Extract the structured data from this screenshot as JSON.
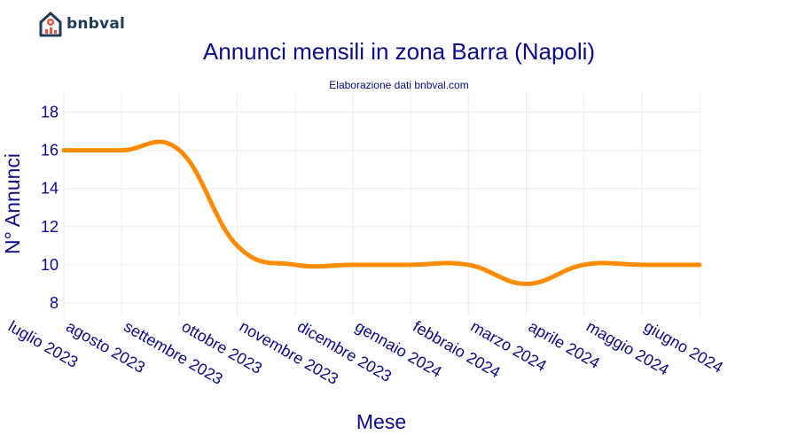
{
  "brand": {
    "name": "bnbval",
    "logo_icon": "house-chart-icon",
    "logo_color": "#1f3b57",
    "logo_accent": "#e8543e"
  },
  "chart_data": {
    "type": "line",
    "title": "Annunci mensili in zona Barra (Napoli)",
    "subtitle": "Elaborazione dati bnbval.com",
    "xlabel": "Mese",
    "ylabel": "N° Annunci",
    "categories": [
      "luglio 2023",
      "agosto 2023",
      "settembre 2023",
      "ottobre 2023",
      "novembre 2023",
      "dicembre 2023",
      "gennaio 2024",
      "febbraio 2024",
      "marzo 2024",
      "aprile 2024",
      "maggio 2024",
      "giugno 2024"
    ],
    "series": [
      {
        "values": [
          16,
          16,
          16,
          11,
          10,
          10,
          10,
          10,
          9,
          10,
          10,
          10
        ],
        "color": "#ff8c00"
      }
    ],
    "yticks": [
      8,
      10,
      12,
      14,
      16,
      18
    ],
    "ylim": [
      7.3,
      19
    ],
    "grid": true,
    "line_shape": "spline"
  }
}
